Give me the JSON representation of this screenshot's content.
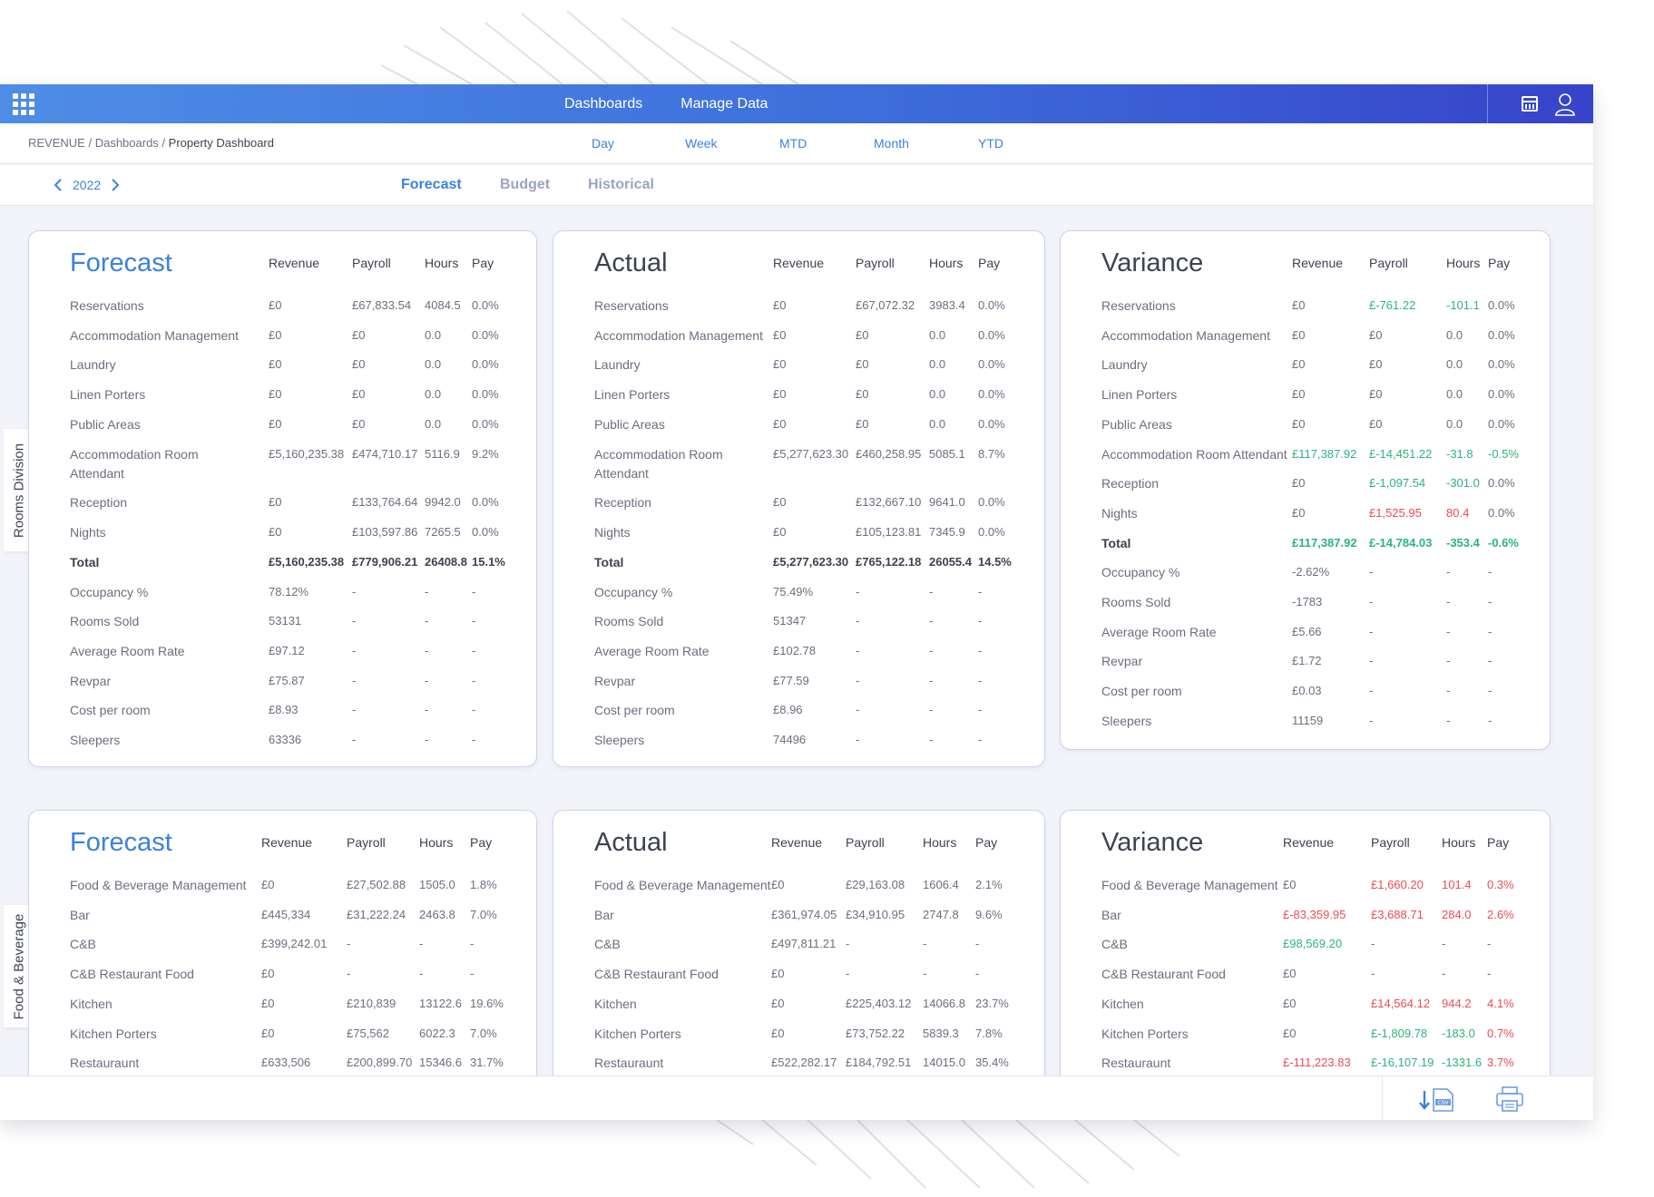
{
  "colors": {
    "accent": "#3b82db",
    "positive": "#2bb47a",
    "negative": "#ec4b55",
    "topbar_start": "#4f8de6",
    "topbar_end": "#3743c9"
  },
  "topnav": {
    "dashboards": "Dashboards",
    "manage_data": "Manage Data"
  },
  "breadcrumb": {
    "root": "REVENUE",
    "sep": " / ",
    "middle": "Dashboards",
    "current": "Property Dashboard"
  },
  "periods": {
    "day": "Day",
    "week": "Week",
    "mtd": "MTD",
    "month": "Month",
    "ytd": "YTD"
  },
  "year": "2022",
  "tabs": {
    "forecast": "Forecast",
    "budget": "Budget",
    "historical": "Historical",
    "active": "forecast"
  },
  "sections": {
    "rooms": "Rooms Division",
    "fnb": "Food & Beverage"
  },
  "columns": {
    "revenue": "Revenue",
    "payroll": "Payroll",
    "hours": "Hours",
    "pay": "Pay"
  },
  "rooms_forecast": {
    "title": "Forecast",
    "rows": [
      {
        "label": "Reservations",
        "revenue": "£0",
        "payroll": "£67,833.54",
        "hours": "4084.5",
        "pay": "0.0%"
      },
      {
        "label": "Accommodation Management",
        "revenue": "£0",
        "payroll": "£0",
        "hours": "0.0",
        "pay": "0.0%"
      },
      {
        "label": "Laundry",
        "revenue": "£0",
        "payroll": "£0",
        "hours": "0.0",
        "pay": "0.0%"
      },
      {
        "label": "Linen Porters",
        "revenue": "£0",
        "payroll": "£0",
        "hours": "0.0",
        "pay": "0.0%"
      },
      {
        "label": "Public Areas",
        "revenue": "£0",
        "payroll": "£0",
        "hours": "0.0",
        "pay": "0.0%"
      },
      {
        "label": "Accommodation Room",
        "label2": "Attendant",
        "revenue": "£5,160,235.38",
        "payroll": "£474,710.17",
        "hours": "5116.9",
        "pay": "9.2%"
      },
      {
        "label": "Reception",
        "revenue": "£0",
        "payroll": "£133,764.64",
        "hours": "9942.0",
        "pay": "0.0%"
      },
      {
        "label": "Nights",
        "revenue": "£0",
        "payroll": "£103,597.86",
        "hours": "7265.5",
        "pay": "0.0%"
      },
      {
        "label": "Total",
        "revenue": "£5,160,235.38",
        "payroll": "£779,906.21",
        "hours": "26408.8",
        "pay": "15.1%",
        "bold": true
      },
      {
        "label": "Occupancy %",
        "revenue": "78.12%",
        "payroll": "-",
        "hours": "-",
        "pay": "-"
      },
      {
        "label": "Rooms Sold",
        "revenue": "53131",
        "payroll": "-",
        "hours": "-",
        "pay": "-"
      },
      {
        "label": "Average Room Rate",
        "revenue": "£97.12",
        "payroll": "-",
        "hours": "-",
        "pay": "-"
      },
      {
        "label": "Revpar",
        "revenue": "£75.87",
        "payroll": "-",
        "hours": "-",
        "pay": "-"
      },
      {
        "label": "Cost per room",
        "revenue": "£8.93",
        "payroll": "-",
        "hours": "-",
        "pay": "-"
      },
      {
        "label": "Sleepers",
        "revenue": "63336",
        "payroll": "-",
        "hours": "-",
        "pay": "-"
      }
    ]
  },
  "rooms_actual": {
    "title": "Actual",
    "rows": [
      {
        "label": "Reservations",
        "revenue": "£0",
        "payroll": "£67,072.32",
        "hours": "3983.4",
        "pay": "0.0%"
      },
      {
        "label": "Accommodation Management",
        "revenue": "£0",
        "payroll": "£0",
        "hours": "0.0",
        "pay": "0.0%"
      },
      {
        "label": "Laundry",
        "revenue": "£0",
        "payroll": "£0",
        "hours": "0.0",
        "pay": "0.0%"
      },
      {
        "label": "Linen Porters",
        "revenue": "£0",
        "payroll": "£0",
        "hours": "0.0",
        "pay": "0.0%"
      },
      {
        "label": "Public Areas",
        "revenue": "£0",
        "payroll": "£0",
        "hours": "0.0",
        "pay": "0.0%"
      },
      {
        "label": "Accommodation Room",
        "label2": "Attendant",
        "revenue": "£5,277,623.30",
        "payroll": "£460,258.95",
        "hours": "5085.1",
        "pay": "8.7%"
      },
      {
        "label": "Reception",
        "revenue": "£0",
        "payroll": "£132,667.10",
        "hours": "9641.0",
        "pay": "0.0%"
      },
      {
        "label": "Nights",
        "revenue": "£0",
        "payroll": "£105,123.81",
        "hours": "7345.9",
        "pay": "0.0%"
      },
      {
        "label": "Total",
        "revenue": "£5,277,623.30",
        "payroll": "£765,122.18",
        "hours": "26055.4",
        "pay": "14.5%",
        "bold": true
      },
      {
        "label": "Occupancy %",
        "revenue": "75.49%",
        "payroll": "-",
        "hours": "-",
        "pay": "-"
      },
      {
        "label": "Rooms Sold",
        "revenue": "51347",
        "payroll": "-",
        "hours": "-",
        "pay": "-"
      },
      {
        "label": "Average Room Rate",
        "revenue": "£102.78",
        "payroll": "-",
        "hours": "-",
        "pay": "-"
      },
      {
        "label": "Revpar",
        "revenue": "£77.59",
        "payroll": "-",
        "hours": "-",
        "pay": "-"
      },
      {
        "label": "Cost per room",
        "revenue": "£8.96",
        "payroll": "-",
        "hours": "-",
        "pay": "-"
      },
      {
        "label": "Sleepers",
        "revenue": "74496",
        "payroll": "-",
        "hours": "-",
        "pay": "-"
      }
    ]
  },
  "rooms_variance": {
    "title": "Variance",
    "rows": [
      {
        "label": "Reservations",
        "revenue": "£0",
        "payroll": "£-761.22",
        "hours": "-101.1",
        "pay": "0.0%",
        "c": [
          "",
          "pos",
          "pos",
          ""
        ]
      },
      {
        "label": "Accommodation Management",
        "revenue": "£0",
        "payroll": "£0",
        "hours": "0.0",
        "pay": "0.0%",
        "c": [
          "",
          "",
          "",
          ""
        ]
      },
      {
        "label": "Laundry",
        "revenue": "£0",
        "payroll": "£0",
        "hours": "0.0",
        "pay": "0.0%",
        "c": [
          "",
          "",
          "",
          ""
        ]
      },
      {
        "label": "Linen Porters",
        "revenue": "£0",
        "payroll": "£0",
        "hours": "0.0",
        "pay": "0.0%",
        "c": [
          "",
          "",
          "",
          ""
        ]
      },
      {
        "label": "Public Areas",
        "revenue": "£0",
        "payroll": "£0",
        "hours": "0.0",
        "pay": "0.0%",
        "c": [
          "",
          "",
          "",
          ""
        ]
      },
      {
        "label": "Accommodation Room Attendant",
        "revenue": "£117,387.92",
        "payroll": "£-14,451.22",
        "hours": "-31.8",
        "pay": "-0.5%",
        "c": [
          "pos",
          "pos",
          "pos",
          "pos"
        ]
      },
      {
        "label": "Reception",
        "revenue": "£0",
        "payroll": "£-1,097.54",
        "hours": "-301.0",
        "pay": "0.0%",
        "c": [
          "",
          "pos",
          "pos",
          ""
        ]
      },
      {
        "label": "Nights",
        "revenue": "£0",
        "payroll": "£1,525.95",
        "hours": "80.4",
        "pay": "0.0%",
        "c": [
          "",
          "neg",
          "neg",
          ""
        ]
      },
      {
        "label": "Total",
        "revenue": "£117,387.92",
        "payroll": "£-14,784.03",
        "hours": "-353.4",
        "pay": "-0.6%",
        "bold": true,
        "c": [
          "pos",
          "pos",
          "pos",
          "pos"
        ]
      },
      {
        "label": "Occupancy %",
        "revenue": "-2.62%",
        "payroll": "-",
        "hours": "-",
        "pay": "-",
        "c": [
          "",
          "",
          "",
          ""
        ]
      },
      {
        "label": "Rooms Sold",
        "revenue": "-1783",
        "payroll": "-",
        "hours": "-",
        "pay": "-",
        "c": [
          "",
          "",
          "",
          ""
        ]
      },
      {
        "label": "Average Room Rate",
        "revenue": "£5.66",
        "payroll": "-",
        "hours": "-",
        "pay": "-",
        "c": [
          "",
          "",
          "",
          ""
        ]
      },
      {
        "label": "Revpar",
        "revenue": "£1.72",
        "payroll": "-",
        "hours": "-",
        "pay": "-",
        "c": [
          "",
          "",
          "",
          ""
        ]
      },
      {
        "label": "Cost per room",
        "revenue": "£0.03",
        "payroll": "-",
        "hours": "-",
        "pay": "-",
        "c": [
          "",
          "",
          "",
          ""
        ]
      },
      {
        "label": "Sleepers",
        "revenue": "11159",
        "payroll": "-",
        "hours": "-",
        "pay": "-",
        "c": [
          "",
          "",
          "",
          ""
        ]
      }
    ]
  },
  "fnb_forecast": {
    "title": "Forecast",
    "rows": [
      {
        "label": "Food & Beverage Management",
        "revenue": "£0",
        "payroll": "£27,502.88",
        "hours": "1505.0",
        "pay": "1.8%"
      },
      {
        "label": "Bar",
        "revenue": "£445,334",
        "payroll": "£31,222.24",
        "hours": "2463.8",
        "pay": "7.0%"
      },
      {
        "label": "C&B",
        "revenue": "£399,242.01",
        "payroll": "-",
        "hours": "-",
        "pay": "-"
      },
      {
        "label": "C&B Restaurant Food",
        "revenue": "£0",
        "payroll": "-",
        "hours": "-",
        "pay": "-"
      },
      {
        "label": "Kitchen",
        "revenue": "£0",
        "payroll": "£210,839",
        "hours": "13122.6",
        "pay": "19.6%"
      },
      {
        "label": "Kitchen Porters",
        "revenue": "£0",
        "payroll": "£75,562",
        "hours": "6022.3",
        "pay": "7.0%"
      },
      {
        "label": "Restauraunt",
        "revenue": "£633,506",
        "payroll": "£200,899.70",
        "hours": "15346.6",
        "pay": "31.7%"
      }
    ]
  },
  "fnb_actual": {
    "title": "Actual",
    "rows": [
      {
        "label": "Food & Beverage Management",
        "revenue": "£0",
        "payroll": "£29,163.08",
        "hours": "1606.4",
        "pay": "2.1%"
      },
      {
        "label": "Bar",
        "revenue": "£361,974.05",
        "payroll": "£34,910.95",
        "hours": "2747.8",
        "pay": "9.6%"
      },
      {
        "label": "C&B",
        "revenue": "£497,811.21",
        "payroll": "-",
        "hours": "-",
        "pay": "-"
      },
      {
        "label": "C&B Restaurant Food",
        "revenue": "£0",
        "payroll": "-",
        "hours": "-",
        "pay": "-"
      },
      {
        "label": "Kitchen",
        "revenue": "£0",
        "payroll": "£225,403.12",
        "hours": "14066.8",
        "pay": "23.7%"
      },
      {
        "label": "Kitchen Porters",
        "revenue": "£0",
        "payroll": "£73,752.22",
        "hours": "5839.3",
        "pay": "7.8%"
      },
      {
        "label": "Restauraunt",
        "revenue": "£522,282.17",
        "payroll": "£184,792.51",
        "hours": "14015.0",
        "pay": "35.4%"
      }
    ]
  },
  "fnb_variance": {
    "title": "Variance",
    "rows": [
      {
        "label": "Food & Beverage Management",
        "revenue": "£0",
        "payroll": "£1,660.20",
        "hours": "101.4",
        "pay": "0.3%",
        "c": [
          "",
          "neg",
          "neg",
          "neg"
        ]
      },
      {
        "label": "Bar",
        "revenue": "£-83,359.95",
        "payroll": "£3,688.71",
        "hours": "284.0",
        "pay": "2.6%",
        "c": [
          "neg",
          "neg",
          "neg",
          "neg"
        ]
      },
      {
        "label": "C&B",
        "revenue": "£98,569.20",
        "payroll": "-",
        "hours": "-",
        "pay": "-",
        "c": [
          "pos",
          "",
          "",
          ""
        ]
      },
      {
        "label": "C&B Restaurant Food",
        "revenue": "£0",
        "payroll": "-",
        "hours": "-",
        "pay": "-",
        "c": [
          "",
          "",
          "",
          ""
        ]
      },
      {
        "label": "Kitchen",
        "revenue": "£0",
        "payroll": "£14,564.12",
        "hours": "944.2",
        "pay": "4.1%",
        "c": [
          "",
          "neg",
          "neg",
          "neg"
        ]
      },
      {
        "label": "Kitchen Porters",
        "revenue": "£0",
        "payroll": "£-1,809.78",
        "hours": "-183.0",
        "pay": "0.7%",
        "c": [
          "",
          "pos",
          "pos",
          "neg"
        ]
      },
      {
        "label": "Restauraunt",
        "revenue": "£-111,223.83",
        "payroll": "£-16,107.19",
        "hours": "-1331.6",
        "pay": "3.7%",
        "c": [
          "neg",
          "pos",
          "pos",
          "neg"
        ]
      }
    ]
  },
  "icons": {
    "apps": "apps-grid-icon",
    "calendar": "calendar-icon",
    "user": "user-icon",
    "csv": "csv-download-icon",
    "print": "print-icon"
  }
}
